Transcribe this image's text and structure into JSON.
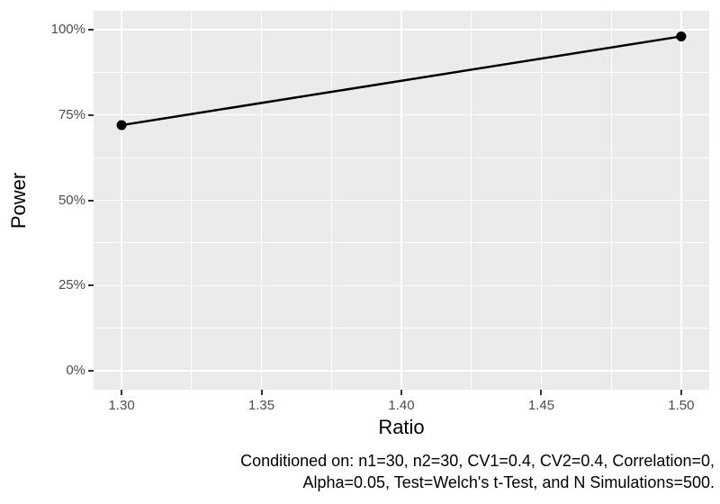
{
  "figure": {
    "caption": {
      "line1": "Conditioned on: n1=30, n2=30, CV1=0.4, CV2=0.4, Correlation=0,",
      "line2": "Alpha=0.05, Test=Welch's t-Test, and N Simulations=500."
    }
  },
  "chart_data": {
    "type": "line",
    "title": "",
    "xlabel": "Ratio",
    "ylabel": "Power",
    "x": [
      1.3,
      1.5
    ],
    "series": [
      {
        "name": "Power",
        "values": [
          72,
          98
        ]
      }
    ],
    "x_ticks": {
      "values": [
        1.3,
        1.35,
        1.4,
        1.45,
        1.5
      ],
      "labels": [
        "1.30",
        "1.35",
        "1.40",
        "1.45",
        "1.50"
      ]
    },
    "y_ticks": {
      "values": [
        0,
        25,
        50,
        75,
        100
      ],
      "labels": [
        "0%",
        "25%",
        "50%",
        "75%",
        "100%"
      ]
    },
    "x_minor": [
      1.325,
      1.375,
      1.425,
      1.475
    ],
    "y_minor": [
      12.5,
      37.5,
      62.5,
      87.5
    ],
    "xlim": [
      1.29,
      1.51
    ],
    "ylim": [
      -5.5,
      105.5
    ],
    "grid": true,
    "legend": "none",
    "point_radius": 5.5,
    "line_width": 2.5,
    "colors": {
      "background": "#FFFFFF",
      "panel_bg": "#EBEBEB",
      "grid_major": "#FFFFFF",
      "grid_minor": "#FFFFFF",
      "line": "#000000",
      "point": "#000000",
      "tick_mark": "#333333",
      "tick_label": "#4D4D4D",
      "axis_title": "#000000",
      "caption": "#000000"
    }
  }
}
